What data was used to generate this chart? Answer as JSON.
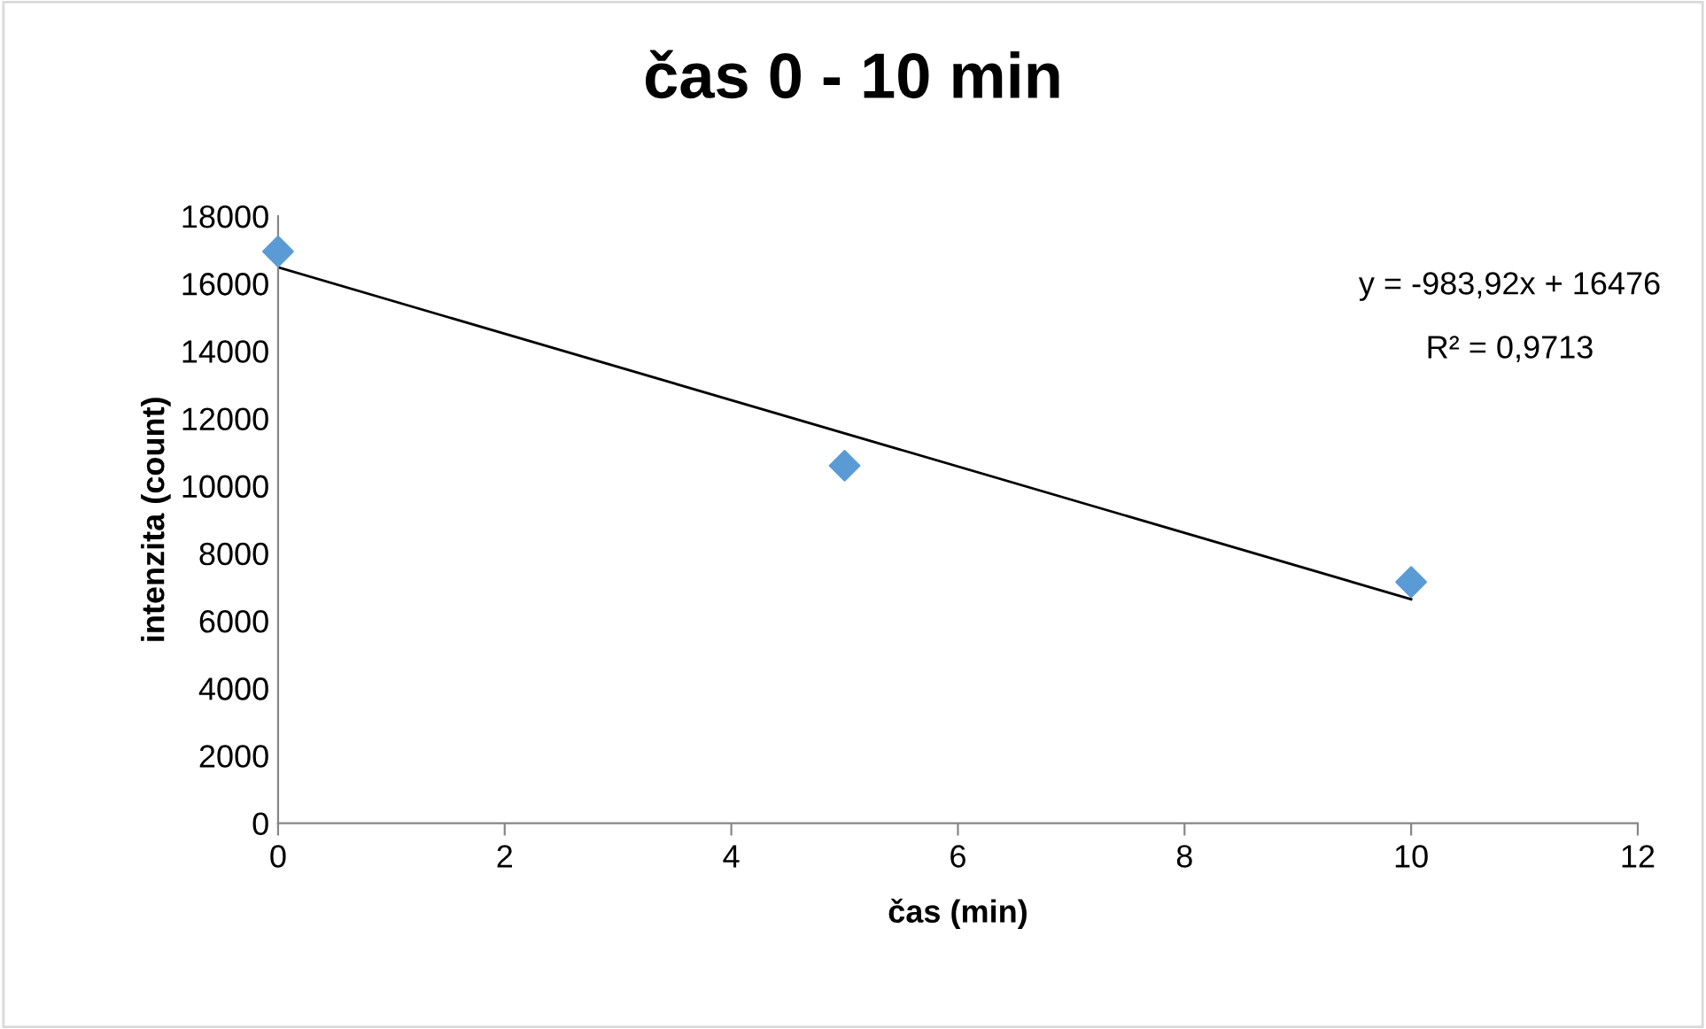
{
  "chart_data": {
    "type": "scatter",
    "title": "čas 0 - 10 min",
    "xlabel": "čas (min)",
    "ylabel": "intenzita (count)",
    "x": [
      0,
      5,
      10
    ],
    "series": [
      {
        "color": "#5b9bd5",
        "values": [
          16950,
          10600,
          7150
        ],
        "marker": "diamond"
      },
      {
        "type": "line",
        "color": "#000000",
        "x": [
          0,
          10
        ],
        "values": [
          16480,
          6640
        ],
        "marker": "none",
        "line_style": "solid"
      }
    ],
    "annotations": [
      "y = -983,92x + 16476",
      "R² = 0,9713"
    ],
    "xlim": [
      0,
      12
    ],
    "xticks": [
      0,
      2,
      4,
      6,
      8,
      10,
      12
    ],
    "ylim": [
      0,
      18000
    ],
    "yticks": [
      0,
      2000,
      4000,
      6000,
      8000,
      10000,
      12000,
      14000,
      16000,
      18000
    ],
    "grid": false
  }
}
